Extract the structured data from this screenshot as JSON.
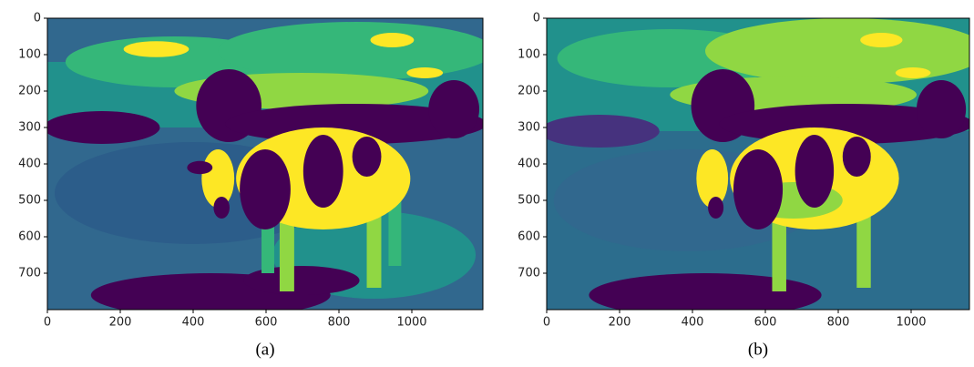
{
  "chart_data": [
    {
      "type": "image",
      "caption": "(a)",
      "xlim": [
        0,
        1195
      ],
      "ylim": [
        800,
        0
      ],
      "xticks": [
        0,
        200,
        400,
        600,
        800,
        1000
      ],
      "yticks": [
        0,
        100,
        200,
        300,
        400,
        500,
        600,
        700
      ]
    },
    {
      "type": "image",
      "caption": "(b)",
      "xlim": [
        0,
        1160
      ],
      "ylim": [
        800,
        0
      ],
      "xticks": [
        0,
        200,
        400,
        600,
        800,
        1000
      ],
      "yticks": [
        0,
        100,
        200,
        300,
        400,
        500,
        600,
        700
      ]
    }
  ]
}
